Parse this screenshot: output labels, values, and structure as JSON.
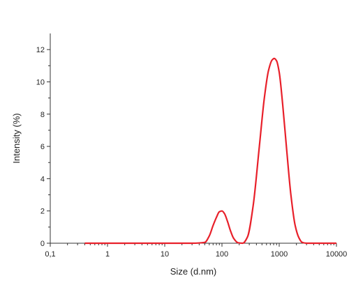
{
  "chart_data": {
    "type": "line",
    "title": "",
    "xlabel": "Size (d.nm)",
    "ylabel": "Intensity (%)",
    "x_scale": "log",
    "xlim": [
      0.1,
      10000
    ],
    "ylim": [
      0,
      13
    ],
    "x_ticks": [
      0.1,
      1,
      10,
      100,
      1000,
      10000
    ],
    "x_tick_labels": [
      "0,1",
      "1",
      "10",
      "100",
      "1000",
      "10000"
    ],
    "y_ticks": [
      0,
      2,
      4,
      6,
      8,
      10,
      12
    ],
    "y_tick_labels": [
      "0",
      "2",
      "4",
      "6",
      "8",
      "10",
      "12"
    ],
    "grid": false,
    "legend": "none",
    "series": [
      {
        "color": "#e8202a",
        "x": [
          0.4,
          30,
          50,
          60,
          70,
          80,
          90,
          100,
          110,
          125,
          140,
          160,
          190,
          230,
          280,
          350,
          450,
          550,
          650,
          750,
          820,
          900,
          1000,
          1150,
          1350,
          1600,
          1900,
          2200,
          2500,
          3000,
          5000,
          10000
        ],
        "y": [
          0,
          0,
          0.05,
          0.45,
          1.1,
          1.6,
          1.95,
          2.0,
          1.85,
          1.35,
          0.8,
          0.3,
          0.03,
          0,
          0.4,
          2.3,
          6.0,
          9.0,
          10.7,
          11.35,
          11.45,
          11.3,
          10.6,
          8.6,
          5.8,
          3.0,
          1.1,
          0.35,
          0.06,
          0,
          0,
          0
        ]
      }
    ]
  }
}
